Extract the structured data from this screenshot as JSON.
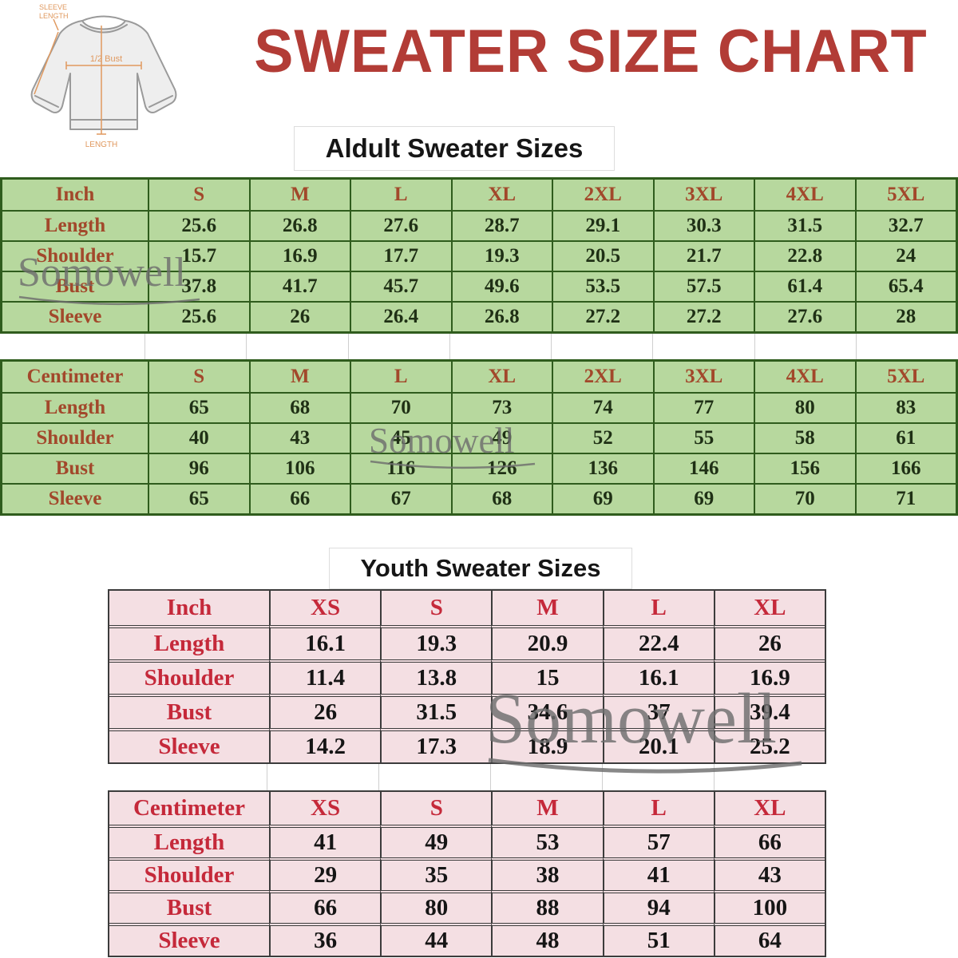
{
  "page": {
    "title": "SWEATER SIZE CHART"
  },
  "colors": {
    "title_red": "#b23c36",
    "green_bg": "#b7d89e",
    "green_border": "#2f5c1d",
    "green_label": "#a2482b",
    "green_value": "#1f3015",
    "pink_bg": "#f4dfe3",
    "pink_border": "#3c3c3c",
    "pink_label": "#c5293a",
    "pink_value": "#151515",
    "watermark_gray": "#6e6e6e",
    "diagram_orange": "#e0995f"
  },
  "watermark": {
    "text": "Somowell"
  },
  "diagram": {
    "sleeve_label_line1": "SLEEVE",
    "sleeve_label_line2": "LENGTH",
    "bust_label": "1/2 Bust",
    "length_label": "LENGTH"
  },
  "adult": {
    "heading": "Aldult Sweater Sizes",
    "inch": {
      "header": [
        "Inch",
        "S",
        "M",
        "L",
        "XL",
        "2XL",
        "3XL",
        "4XL",
        "5XL"
      ],
      "rows": [
        [
          "Length",
          "25.6",
          "26.8",
          "27.6",
          "28.7",
          "29.1",
          "30.3",
          "31.5",
          "32.7"
        ],
        [
          "Shoulder",
          "15.7",
          "16.9",
          "17.7",
          "19.3",
          "20.5",
          "21.7",
          "22.8",
          "24"
        ],
        [
          "Bust",
          "37.8",
          "41.7",
          "45.7",
          "49.6",
          "53.5",
          "57.5",
          "61.4",
          "65.4"
        ],
        [
          "Sleeve",
          "25.6",
          "26",
          "26.4",
          "26.8",
          "27.2",
          "27.2",
          "27.6",
          "28"
        ]
      ]
    },
    "cm": {
      "header": [
        "Centimeter",
        "S",
        "M",
        "L",
        "XL",
        "2XL",
        "3XL",
        "4XL",
        "5XL"
      ],
      "rows": [
        [
          "Length",
          "65",
          "68",
          "70",
          "73",
          "74",
          "77",
          "80",
          "83"
        ],
        [
          "Shoulder",
          "40",
          "43",
          "45",
          "49",
          "52",
          "55",
          "58",
          "61"
        ],
        [
          "Bust",
          "96",
          "106",
          "116",
          "126",
          "136",
          "146",
          "156",
          "166"
        ],
        [
          "Sleeve",
          "65",
          "66",
          "67",
          "68",
          "69",
          "69",
          "70",
          "71"
        ]
      ]
    }
  },
  "youth": {
    "heading": "Youth Sweater Sizes",
    "inch": {
      "header": [
        "Inch",
        "XS",
        "S",
        "M",
        "L",
        "XL"
      ],
      "rows": [
        [
          "Length",
          "16.1",
          "19.3",
          "20.9",
          "22.4",
          "26"
        ],
        [
          "Shoulder",
          "11.4",
          "13.8",
          "15",
          "16.1",
          "16.9"
        ],
        [
          "Bust",
          "26",
          "31.5",
          "34.6",
          "37",
          "39.4"
        ],
        [
          "Sleeve",
          "14.2",
          "17.3",
          "18.9",
          "20.1",
          "25.2"
        ]
      ]
    },
    "cm": {
      "header": [
        "Centimeter",
        "XS",
        "S",
        "M",
        "L",
        "XL"
      ],
      "rows": [
        [
          "Length",
          "41",
          "49",
          "53",
          "57",
          "66"
        ],
        [
          "Shoulder",
          "29",
          "35",
          "38",
          "41",
          "43"
        ],
        [
          "Bust",
          "66",
          "80",
          "88",
          "94",
          "100"
        ],
        [
          "Sleeve",
          "36",
          "44",
          "48",
          "51",
          "64"
        ]
      ]
    }
  }
}
